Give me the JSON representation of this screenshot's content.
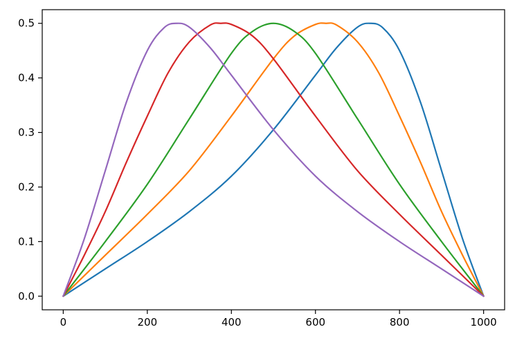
{
  "chart_data": {
    "type": "line",
    "title": "",
    "xlabel": "",
    "ylabel": "",
    "xlim": [
      -50,
      1050
    ],
    "ylim": [
      -0.025,
      0.525
    ],
    "xticks": [
      0,
      200,
      400,
      600,
      800,
      1000
    ],
    "yticks": [
      0.0,
      0.1,
      0.2,
      0.3,
      0.4,
      0.5
    ],
    "xtick_labels": [
      "0",
      "200",
      "400",
      "600",
      "800",
      "1000"
    ],
    "ytick_labels": [
      "0.0",
      "0.1",
      "0.2",
      "0.3",
      "0.4",
      "0.5"
    ],
    "grid": false,
    "legend": "none",
    "series": [
      {
        "color": "#1f77b4",
        "x": [
          0,
          100,
          200,
          300,
          400,
          500,
          600,
          650,
          700,
          730,
          760,
          800,
          850,
          900,
          950,
          1000
        ],
        "y": [
          0.0,
          0.05,
          0.1,
          0.155,
          0.22,
          0.305,
          0.405,
          0.455,
          0.493,
          0.5,
          0.492,
          0.45,
          0.355,
          0.23,
          0.105,
          0.0
        ]
      },
      {
        "color": "#ff7f0e",
        "x": [
          0,
          100,
          200,
          300,
          400,
          500,
          550,
          600,
          625,
          650,
          700,
          750,
          800,
          850,
          900,
          950,
          1000
        ],
        "y": [
          0.0,
          0.075,
          0.15,
          0.23,
          0.33,
          0.435,
          0.477,
          0.498,
          0.5,
          0.497,
          0.466,
          0.41,
          0.33,
          0.245,
          0.155,
          0.075,
          0.0
        ]
      },
      {
        "color": "#2ca02c",
        "x": [
          0,
          100,
          200,
          300,
          400,
          450,
          500,
          550,
          600,
          700,
          800,
          900,
          1000
        ],
        "y": [
          0.0,
          0.1,
          0.205,
          0.325,
          0.445,
          0.485,
          0.5,
          0.485,
          0.445,
          0.325,
          0.205,
          0.1,
          0.0
        ]
      },
      {
        "color": "#d62728",
        "x": [
          0,
          50,
          100,
          150,
          200,
          250,
          300,
          350,
          375,
          400,
          450,
          500,
          600,
          700,
          800,
          900,
          1000
        ],
        "y": [
          0.0,
          0.075,
          0.155,
          0.245,
          0.33,
          0.41,
          0.466,
          0.497,
          0.5,
          0.498,
          0.477,
          0.435,
          0.33,
          0.23,
          0.15,
          0.075,
          0.0
        ]
      },
      {
        "color": "#9467bd",
        "x": [
          0,
          50,
          100,
          150,
          200,
          240,
          270,
          300,
          350,
          400,
          500,
          600,
          700,
          800,
          900,
          1000
        ],
        "y": [
          0.0,
          0.105,
          0.23,
          0.355,
          0.45,
          0.492,
          0.5,
          0.493,
          0.455,
          0.405,
          0.305,
          0.22,
          0.155,
          0.1,
          0.05,
          0.0
        ]
      }
    ]
  }
}
